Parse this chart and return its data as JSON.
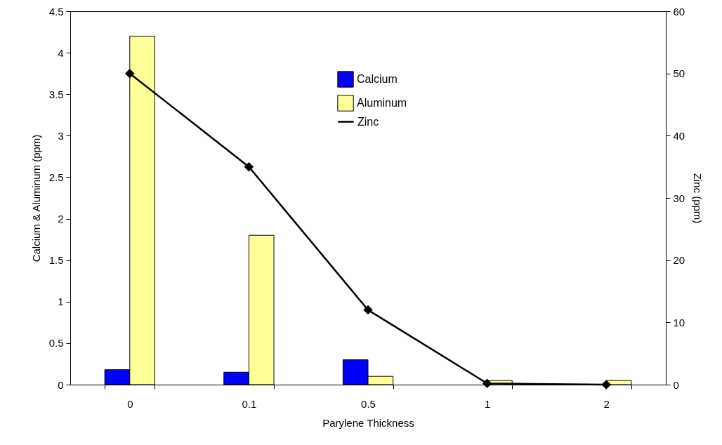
{
  "chart_data": {
    "type": "bar",
    "xlabel": "Parylene Thickness",
    "ylabel": "Calcium & Aluminum (ppm)",
    "y2label": "Zinc (ppm)",
    "categories": [
      "0",
      "0.1",
      "0.5",
      "1",
      "2"
    ],
    "series": [
      {
        "name": "Calcium",
        "color": "#0000ff",
        "values": [
          0.18,
          0.15,
          0.3,
          null,
          null
        ]
      },
      {
        "name": "Aluminum",
        "color": "#ffff99",
        "values": [
          4.2,
          1.8,
          0.1,
          0.05,
          0.05
        ]
      },
      {
        "name": "Zinc",
        "type": "line",
        "axis": "y2",
        "color": "#000000",
        "marker": "diamond",
        "values": [
          50,
          35,
          12,
          0.2,
          0
        ]
      }
    ],
    "ylim": [
      0,
      4.5
    ],
    "yticks": [
      0,
      0.5,
      1,
      1.5,
      2,
      2.5,
      3,
      3.5,
      4,
      4.5
    ],
    "y2lim": [
      0,
      60
    ],
    "y2ticks": [
      0,
      10,
      20,
      30,
      40,
      50,
      60
    ],
    "grid": false,
    "legend": "top right"
  }
}
